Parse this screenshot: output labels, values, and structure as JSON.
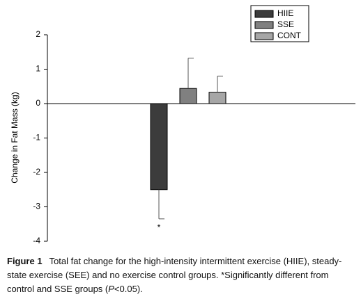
{
  "chart_data": {
    "type": "bar",
    "ylabel": "Change in Fat Mass (kg)",
    "categories": [
      null
    ],
    "series": [
      {
        "name": "HIIE",
        "color": "#3c3c3c",
        "values": [
          -2.5
        ],
        "errors": [
          0.85
        ]
      },
      {
        "name": "SSE",
        "color": "#808080",
        "values": [
          0.44
        ],
        "errors": [
          0.88
        ]
      },
      {
        "name": "CONT",
        "color": "#a6a6a6",
        "values": [
          0.33
        ],
        "errors": [
          0.47
        ]
      }
    ],
    "annotation": "*",
    "ylim": [
      -4,
      2
    ],
    "yticks": [
      -4,
      -3,
      -2,
      -1,
      0,
      1,
      2
    ],
    "grid": false,
    "legend": "upper right"
  },
  "caption": {
    "label": "Figure 1",
    "text": [
      "Total fat change for the high-intensity intermittent exercise (HIIE), steady-state exercise (SEE) and no exercise control groups. *Significantly different from control and SSE groups (",
      "P",
      "<0.05)."
    ]
  }
}
